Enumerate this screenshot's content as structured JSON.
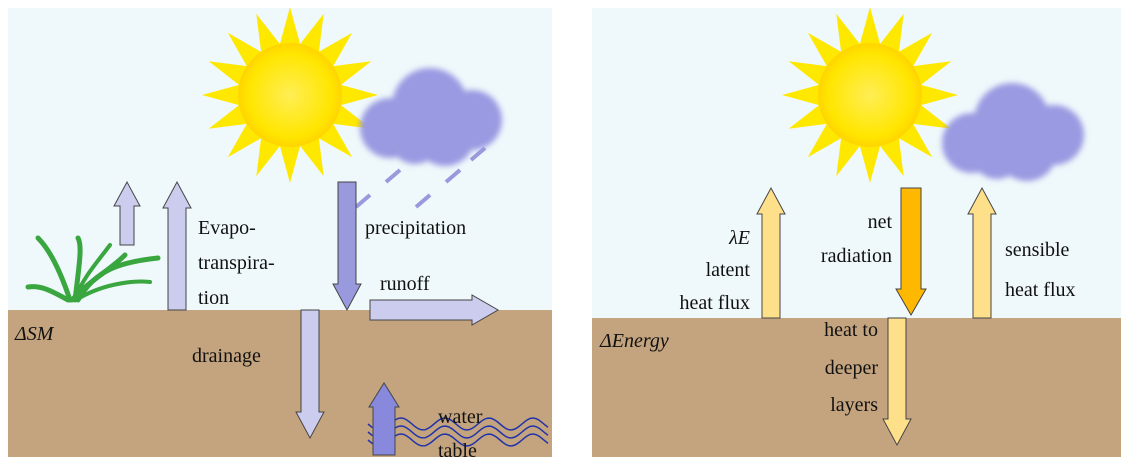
{
  "left_panel": {
    "storage_label": "ΔSM",
    "evapotranspiration": [
      "Evapo-",
      "transpira-",
      "tion"
    ],
    "precipitation": "precipitation",
    "runoff": "runoff",
    "drainage": "drainage",
    "water_table": [
      "water",
      "table"
    ]
  },
  "right_panel": {
    "storage_label": "ΔEnergy",
    "latent_heat_flux": [
      "λE",
      "latent",
      "heat flux"
    ],
    "net_radiation": [
      "net",
      "radiation"
    ],
    "sensible_heat_flux": [
      "sensible",
      "heat flux"
    ],
    "ground_heat_flux": [
      "heat to",
      "deeper",
      "layers"
    ]
  }
}
